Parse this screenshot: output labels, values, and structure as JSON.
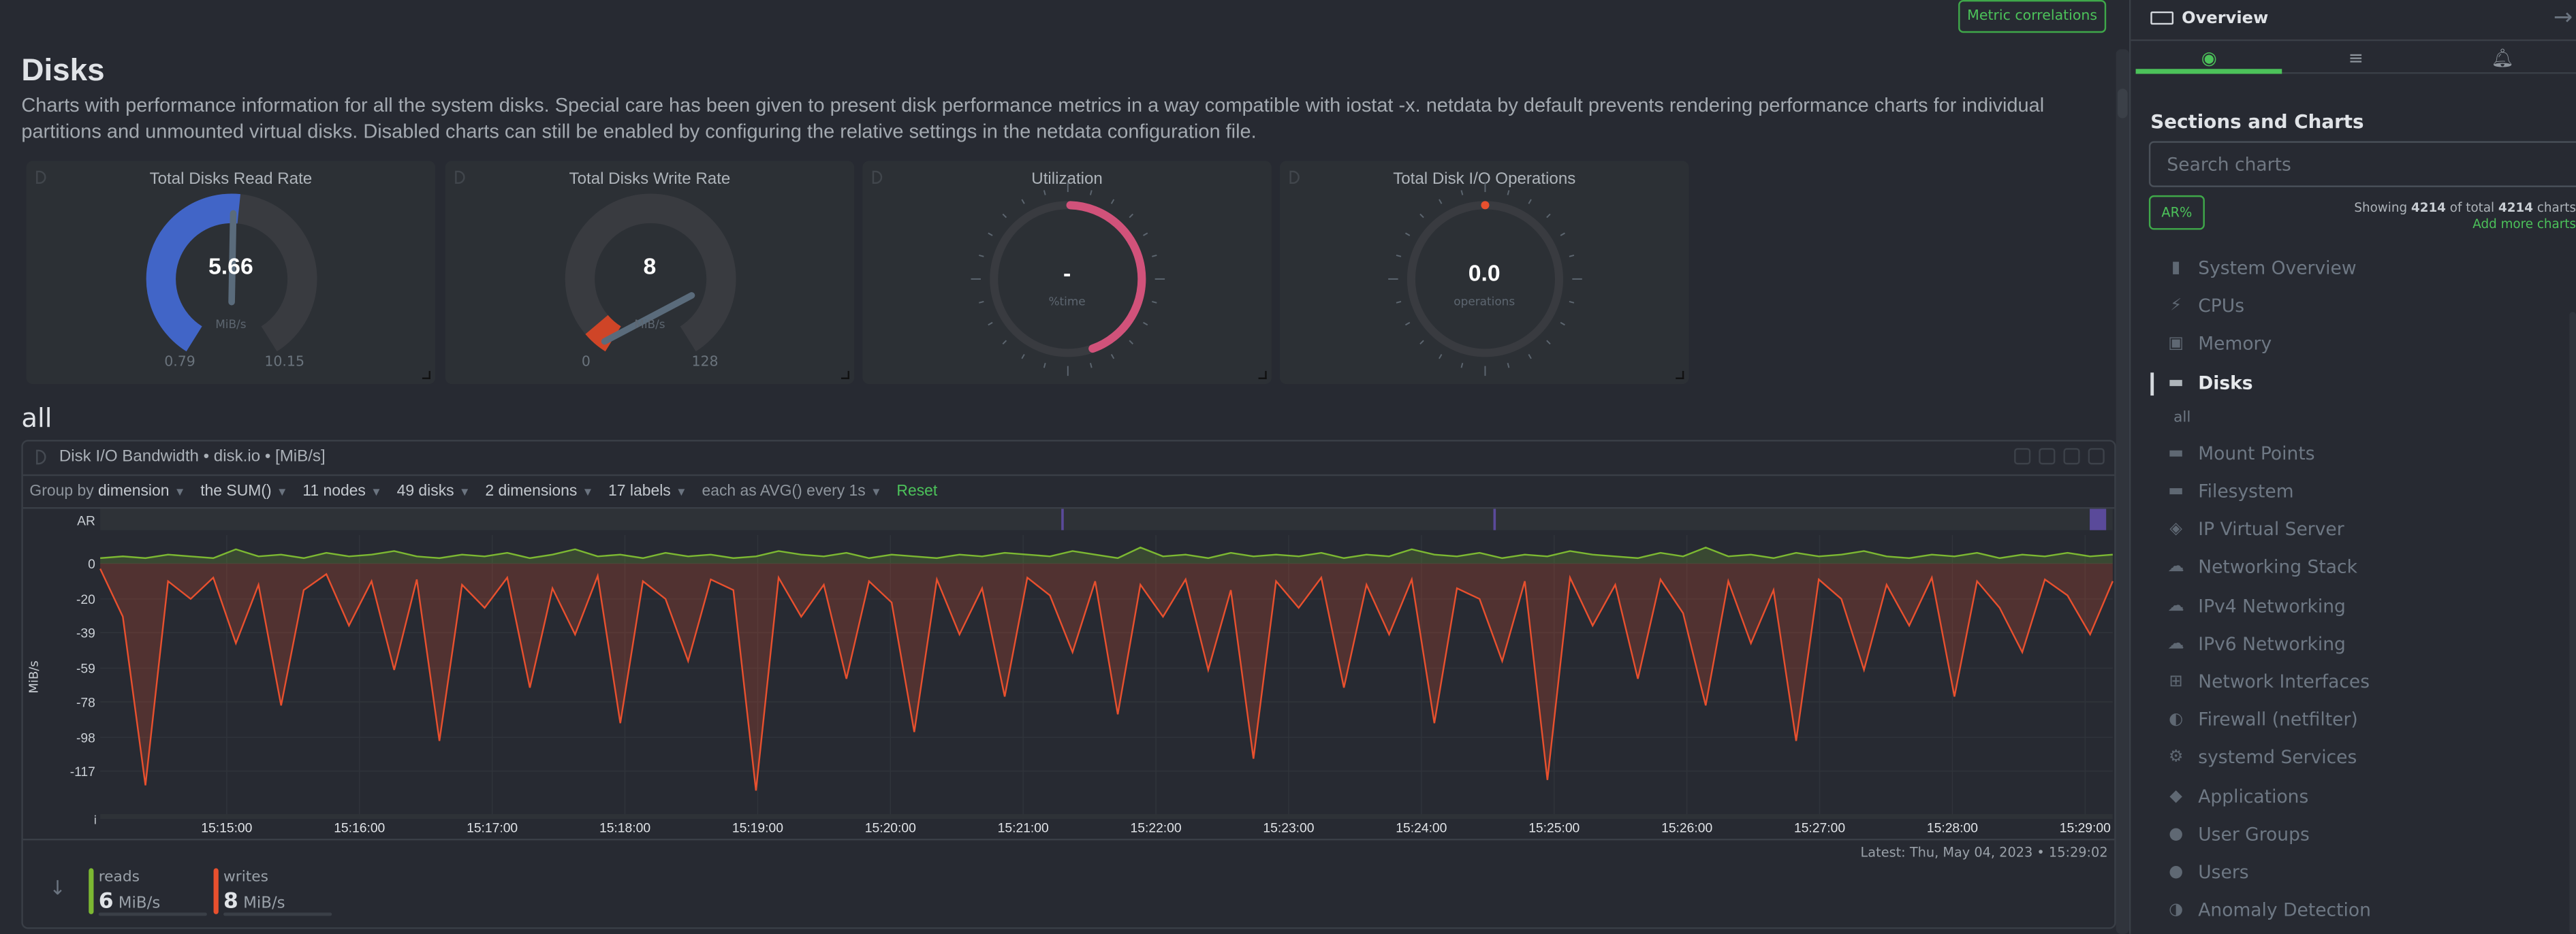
{
  "header": {
    "metric_correlations_label": "Metric correlations"
  },
  "section": {
    "title": "Disks",
    "description": "Charts with performance information for all the system disks. Special care has been given to present disk performance metrics in a way compatible with iostat -x. netdata by default prevents rendering performance charts for individual partitions and unmounted virtual disks. Disabled charts can still be enabled by configuring the relative settings in the netdata configuration file."
  },
  "gauges": [
    {
      "title": "Total Disks Read Rate",
      "value": "5.66",
      "unit": "MiB/s",
      "min": "0.79",
      "max": "10.15",
      "fraction": 0.52,
      "type": "speed",
      "color": "#4165c7"
    },
    {
      "title": "Total Disks Write Rate",
      "value": "8",
      "unit": "MiB/s",
      "min": "0",
      "max": "128",
      "fraction": 0.06,
      "type": "speed",
      "color": "#cf4527"
    },
    {
      "title": "Utilization",
      "value": "-",
      "unit": "%time",
      "fraction": 0.44,
      "type": "dial",
      "color": "#d1527a"
    },
    {
      "title": "Total Disk I/O Operations",
      "value": "0.0",
      "unit": "operations",
      "fraction": 0.0,
      "type": "dial",
      "color": "#e8502e"
    }
  ],
  "subsection": {
    "title": "all"
  },
  "chart": {
    "title": "Disk I/O Bandwidth • disk.io • [MiB/s]",
    "toolbar": {
      "group_by_prefix": "Group by",
      "group_by_value": "dimension",
      "aggregation": "the SUM()",
      "nodes": "11 nodes",
      "instances": "49 disks",
      "dimensions": "2 dimensions",
      "labels": "17 labels",
      "time_agg": "each as AVG() every 1s",
      "reset": "Reset"
    },
    "latest": "Latest: Thu, May 04, 2023 • 15:29:02",
    "legend": [
      {
        "name": "reads",
        "value": "6",
        "unit": "MiB/s",
        "color": "#7cb832"
      },
      {
        "name": "writes",
        "value": "8",
        "unit": "MiB/s",
        "color": "#e8502e"
      }
    ]
  },
  "chart_data": {
    "type": "area",
    "title": "Disk I/O Bandwidth",
    "ylabel": "MiB/s",
    "ylim": [
      -144,
      16
    ],
    "y_ticks": [
      "AR",
      "0",
      "-20",
      "-39",
      "-59",
      "-78",
      "-98",
      "-117"
    ],
    "y_tick_values": [
      null,
      0,
      -20,
      -39,
      -59,
      -78,
      -98,
      -117
    ],
    "x_ticks": [
      "15:15:00",
      "15:16:00",
      "15:17:00",
      "15:18:00",
      "15:19:00",
      "15:20:00",
      "15:21:00",
      "15:22:00",
      "15:23:00",
      "15:24:00",
      "15:25:00",
      "15:26:00",
      "15:27:00",
      "15:28:00",
      "15:29:00"
    ],
    "x_range": [
      "15:14:17",
      "15:29:13"
    ],
    "grid": true,
    "series": [
      {
        "name": "reads",
        "color": "#7cb832",
        "values": [
          3,
          4,
          3,
          5,
          4,
          3,
          8,
          4,
          5,
          3,
          6,
          4,
          5,
          7,
          4,
          3,
          5,
          4,
          6,
          3,
          5,
          8,
          4,
          5,
          3,
          6,
          4,
          5,
          3,
          4,
          7,
          5,
          4,
          6,
          3,
          5,
          4,
          3,
          5,
          4,
          6,
          5,
          4,
          7,
          5,
          3,
          9,
          4,
          5,
          3,
          6,
          4,
          5,
          4,
          6,
          3,
          5,
          4,
          8,
          5,
          4,
          6,
          3,
          5,
          4,
          7,
          5,
          4,
          3,
          6,
          4,
          9,
          4,
          5,
          3,
          6,
          4,
          5,
          7,
          4,
          3,
          5,
          4,
          6,
          3,
          5,
          4,
          6,
          4,
          5
        ]
      },
      {
        "name": "writes",
        "color": "#e8502e",
        "values": [
          -3,
          -30,
          -125,
          -10,
          -20,
          -8,
          -45,
          -12,
          -80,
          -15,
          -6,
          -35,
          -10,
          -60,
          -9,
          -100,
          -12,
          -25,
          -8,
          -70,
          -14,
          -40,
          -7,
          -90,
          -10,
          -20,
          -55,
          -9,
          -15,
          -128,
          -8,
          -30,
          -12,
          -65,
          -10,
          -22,
          -95,
          -9,
          -40,
          -14,
          -75,
          -8,
          -18,
          -50,
          -10,
          -85,
          -12,
          -30,
          -9,
          -60,
          -15,
          -110,
          -10,
          -25,
          -8,
          -70,
          -12,
          -40,
          -9,
          -90,
          -14,
          -20,
          -55,
          -10,
          -122,
          -8,
          -35,
          -12,
          -65,
          -9,
          -28,
          -80,
          -10,
          -45,
          -15,
          -100,
          -9,
          -20,
          -60,
          -12,
          -35,
          -8,
          -75,
          -10,
          -25,
          -50,
          -9,
          -18,
          -40,
          -10
        ]
      }
    ]
  },
  "sidebar": {
    "title": "Overview",
    "tabs": [
      {
        "icon": "charts-icon"
      },
      {
        "icon": "filter-icon"
      },
      {
        "icon": "bell-icon"
      }
    ],
    "sections_title": "Sections and Charts",
    "search_placeholder": "Search charts",
    "ar_label": "AR%",
    "showing_prefix": "Showing",
    "showing_count": "4214",
    "showing_mid": "of total",
    "showing_total": "4214",
    "showing_suffix": "charts",
    "add_more": "Add more charts",
    "items": [
      {
        "label": "System Overview",
        "icon": "▮"
      },
      {
        "label": "CPUs",
        "icon": "⚡"
      },
      {
        "label": "Memory",
        "icon": "▣"
      },
      {
        "label": "Disks",
        "icon": "▬",
        "active": true
      },
      {
        "label": "all",
        "sub": true
      },
      {
        "label": "Mount Points",
        "icon": "▬"
      },
      {
        "label": "Filesystem",
        "icon": "▬"
      },
      {
        "label": "IP Virtual Server",
        "icon": "◈"
      },
      {
        "label": "Networking Stack",
        "icon": "☁"
      },
      {
        "label": "IPv4 Networking",
        "icon": "☁"
      },
      {
        "label": "IPv6 Networking",
        "icon": "☁"
      },
      {
        "label": "Network Interfaces",
        "icon": "⊞"
      },
      {
        "label": "Firewall (netfilter)",
        "icon": "◐"
      },
      {
        "label": "systemd Services",
        "icon": "⚙"
      },
      {
        "label": "Applications",
        "icon": "◆"
      },
      {
        "label": "User Groups",
        "icon": "●"
      },
      {
        "label": "Users",
        "icon": "●"
      },
      {
        "label": "Anomaly Detection",
        "icon": "◑"
      }
    ]
  }
}
